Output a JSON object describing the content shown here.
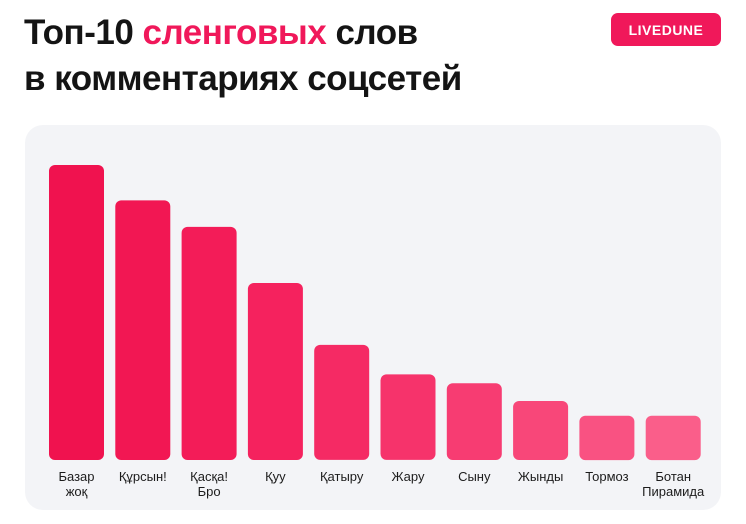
{
  "header": {
    "title_line1_part1": "Топ-10 ",
    "title_line1_accent": "сленговых",
    "title_line1_part2": " слов",
    "title_line2": "в комментариях соцсетей",
    "brand": "LIVEDUNE"
  },
  "colors": {
    "accent": "#f0185a",
    "panel_bg": "#f3f4f7",
    "bar_colors": [
      "#f0124f",
      "#f21753",
      "#f31c58",
      "#f5225e",
      "#f52a64",
      "#f6336b",
      "#f73c72",
      "#f84779",
      "#f95282",
      "#fa5e8a"
    ]
  },
  "chart_data": {
    "type": "bar",
    "title": "Топ-10 сленговых слов в комментариях соцсетей",
    "categories": [
      "Базар жоқ",
      "Құрсын!",
      "Қасқа! Бро",
      "Қуу",
      "Қатыру",
      "Жару",
      "Сыну",
      "Жынды",
      "Тормоз",
      "Ботан Пирамида"
    ],
    "category_lines": [
      [
        "Базар",
        "жоқ"
      ],
      [
        "Құрсын!"
      ],
      [
        "Қасқа!",
        "Бро"
      ],
      [
        "Қуу"
      ],
      [
        "Қатыру"
      ],
      [
        "Жару"
      ],
      [
        "Сыну"
      ],
      [
        "Жынды"
      ],
      [
        "Тормоз"
      ],
      [
        "Ботан",
        "Пирамида"
      ]
    ],
    "values": [
      100,
      88,
      79,
      60,
      39,
      29,
      26,
      20,
      15,
      15
    ],
    "ylim": [
      0,
      100
    ],
    "xlabel": "",
    "ylabel": "",
    "grid": false
  }
}
